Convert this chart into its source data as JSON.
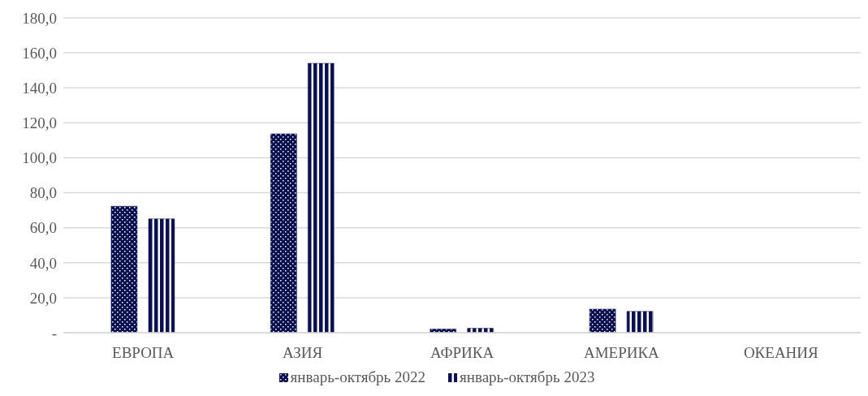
{
  "chart_data": {
    "type": "bar",
    "categories": [
      "ЕВРОПА",
      "АЗИЯ",
      "АФРИКА",
      "АМЕРИКА",
      "ОКЕАНИЯ"
    ],
    "series": [
      {
        "name": "январь-октябрь 2022",
        "color": "#0b1150",
        "values": [
          72.3,
          113.7,
          2.1,
          13.5,
          0
        ]
      },
      {
        "name": "январь-октябрь 2023",
        "color": "#0b1150",
        "values": [
          65.1,
          154.0,
          2.5,
          12.2,
          0
        ]
      }
    ],
    "ylim": [
      0,
      180
    ],
    "yticks": [
      {
        "value": 0,
        "label": "-"
      },
      {
        "value": 20,
        "label": "20,0"
      },
      {
        "value": 40,
        "label": "40,0"
      },
      {
        "value": 60,
        "label": "60,0"
      },
      {
        "value": 80,
        "label": "80,0"
      },
      {
        "value": 100,
        "label": "100,0"
      },
      {
        "value": 120,
        "label": "120,0"
      },
      {
        "value": 140,
        "label": "140,0"
      },
      {
        "value": 160,
        "label": "160,0"
      },
      {
        "value": 180,
        "label": "180,0"
      }
    ],
    "grid": "y",
    "legend": "bottom"
  }
}
